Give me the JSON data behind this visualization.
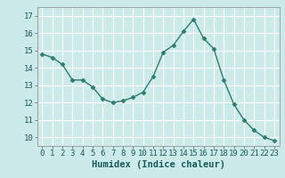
{
  "x": [
    0,
    1,
    2,
    3,
    4,
    5,
    6,
    7,
    8,
    9,
    10,
    11,
    12,
    13,
    14,
    15,
    16,
    17,
    18,
    19,
    20,
    21,
    22,
    23
  ],
  "y": [
    14.8,
    14.6,
    14.2,
    13.3,
    13.3,
    12.9,
    12.2,
    12.0,
    12.1,
    12.3,
    12.6,
    13.5,
    14.9,
    15.3,
    16.1,
    16.8,
    15.7,
    15.1,
    13.3,
    11.9,
    11.0,
    10.4,
    10.0,
    9.8
  ],
  "line_color": "#2e7d6e",
  "marker": "D",
  "marker_size": 2.5,
  "bg_color": "#cdeaea",
  "grid_color": "#ffffff",
  "xlabel": "Humidex (Indice chaleur)",
  "ylim": [
    9.5,
    17.5
  ],
  "xlim": [
    -0.5,
    23.5
  ],
  "yticks": [
    10,
    11,
    12,
    13,
    14,
    15,
    16,
    17
  ],
  "xticks": [
    0,
    1,
    2,
    3,
    4,
    5,
    6,
    7,
    8,
    9,
    10,
    11,
    12,
    13,
    14,
    15,
    16,
    17,
    18,
    19,
    20,
    21,
    22,
    23
  ],
  "xlabel_fontsize": 7.5,
  "tick_fontsize": 6.5,
  "line_width": 1.0
}
